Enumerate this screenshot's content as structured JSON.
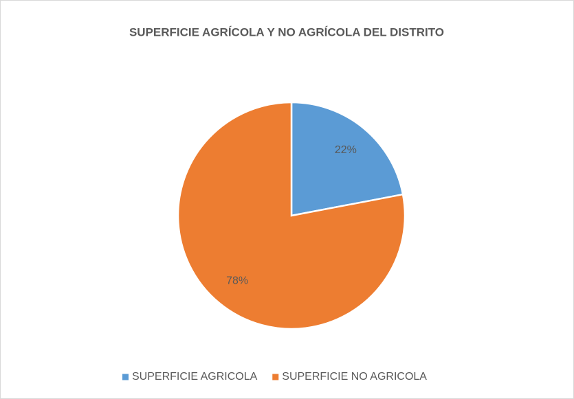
{
  "chart_data": {
    "type": "pie",
    "title": "SUPERFICIE AGRÍCOLA Y NO AGRÍCOLA DEL DISTRITO",
    "categories": [
      "SUPERFICIE AGRICOLA",
      "SUPERFICIE NO AGRICOLA"
    ],
    "values": [
      22,
      78
    ],
    "value_labels": [
      "22%",
      "78%"
    ],
    "colors": [
      "#5b9bd5",
      "#ed7d31"
    ],
    "legend": "bottom"
  }
}
